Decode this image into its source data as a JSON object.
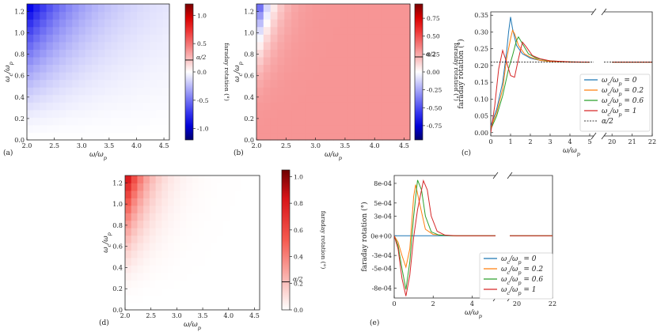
{
  "figure": {
    "panel_labels": [
      "(a)",
      "(b)",
      "(c)",
      "(d)",
      "(e)"
    ],
    "colorbar_label": "faraday rotation (°)",
    "alpha_label": "α/2"
  },
  "chart_data": [
    {
      "panel": "(a)",
      "type": "heatmap",
      "xlabel": "ω/ωp",
      "ylabel": "ωc/ωp",
      "xlim": [
        2.0,
        4.6
      ],
      "ylim": [
        0.0,
        1.27
      ],
      "xticks": [
        "2.0",
        "2.5",
        "3.0",
        "3.5",
        "4.0",
        "4.5"
      ],
      "yticks": [
        "0.0",
        "0.2",
        "0.4",
        "0.6",
        "0.8",
        "1.0",
        "1.2"
      ],
      "colormap": "blue-white-red (diverging)",
      "clim": [
        -1.2,
        1.2
      ],
      "colorbar_ticks": [
        "-1.0",
        "-0.5",
        "0.0",
        "0.5",
        "1.0"
      ],
      "colorbar_marker": 0.21,
      "colorbar_label": "faraday rotation (°)"
    },
    {
      "panel": "(b)",
      "type": "heatmap",
      "xlabel": "ω/ωp",
      "ylabel": "ωc/ωp",
      "xlim": [
        2.0,
        4.6
      ],
      "ylim": [
        0.0,
        1.27
      ],
      "xticks": [
        "2.0",
        "2.5",
        "3.0",
        "3.5",
        "4.0",
        "4.5"
      ],
      "yticks": [
        "0.0",
        "0.2",
        "0.4",
        "0.6",
        "0.8",
        "1.0",
        "1.2"
      ],
      "colormap": "blue-white-red (diverging)",
      "clim": [
        -0.95,
        0.95
      ],
      "colorbar_ticks": [
        "-0.75",
        "-0.50",
        "-0.25",
        "0.00",
        "0.25",
        "0.50",
        "0.75"
      ],
      "colorbar_marker": 0.21,
      "colorbar_label": "faraday rotation (°)"
    },
    {
      "panel": "(c)",
      "type": "line",
      "xlabel": "ω/ωp",
      "ylabel": "faraday rotation (°)",
      "x_segments": [
        [
          0,
          5.2
        ],
        [
          19.6,
          22
        ]
      ],
      "ylim": [
        -0.01,
        0.36
      ],
      "xticks_left": [
        "0",
        "1",
        "2",
        "3",
        "4",
        "5"
      ],
      "xticks_right": [
        "20",
        "21",
        "22"
      ],
      "yticks": [
        "0.00",
        "0.05",
        "0.10",
        "0.15",
        "0.20",
        "0.25",
        "0.30",
        "0.35"
      ],
      "legend_position": "lower-right",
      "series": [
        {
          "name": "ωc/ωp = 0",
          "color": "#1f77b4",
          "x": [
            0,
            0.3,
            0.6,
            0.8,
            0.9,
            1.0,
            1.1,
            1.3,
            1.6,
            2.0,
            2.5,
            3.0,
            4.0,
            5.0,
            20,
            22
          ],
          "y": [
            0.02,
            0.07,
            0.15,
            0.24,
            0.3,
            0.345,
            0.31,
            0.26,
            0.235,
            0.222,
            0.215,
            0.212,
            0.21,
            0.21,
            0.21,
            0.21
          ]
        },
        {
          "name": "ωc/ωp = 0.2",
          "color": "#ff7f0e",
          "x": [
            0,
            0.3,
            0.6,
            0.8,
            1.0,
            1.1,
            1.2,
            1.4,
            1.7,
            2.0,
            2.5,
            3.0,
            4.0,
            5.0,
            20,
            22
          ],
          "y": [
            0.015,
            0.06,
            0.13,
            0.22,
            0.28,
            0.305,
            0.295,
            0.26,
            0.235,
            0.225,
            0.215,
            0.212,
            0.21,
            0.21,
            0.21,
            0.21
          ]
        },
        {
          "name": "ωc/ωp = 0.6",
          "color": "#2ca02c",
          "x": [
            0,
            0.3,
            0.6,
            0.9,
            1.1,
            1.3,
            1.4,
            1.6,
            1.9,
            2.3,
            2.8,
            3.5,
            4.5,
            5.0,
            20,
            22
          ],
          "y": [
            0.01,
            0.05,
            0.11,
            0.19,
            0.23,
            0.275,
            0.285,
            0.265,
            0.235,
            0.222,
            0.215,
            0.212,
            0.21,
            0.21,
            0.21,
            0.21
          ]
        },
        {
          "name": "ωc/ωp = 1",
          "color": "#d62728",
          "x": [
            0,
            0.2,
            0.4,
            0.6,
            0.8,
            1.0,
            1.2,
            1.4,
            1.6,
            1.8,
            2.1,
            2.5,
            3.0,
            4.0,
            5.0,
            20,
            22
          ],
          "y": [
            0.0,
            0.08,
            0.19,
            0.245,
            0.21,
            0.17,
            0.165,
            0.22,
            0.27,
            0.255,
            0.23,
            0.22,
            0.214,
            0.211,
            0.21,
            0.21,
            0.21
          ]
        },
        {
          "name": "α/2",
          "color": "#000000",
          "dashed": true,
          "x": [
            0,
            5.2,
            19.6,
            22
          ],
          "y": [
            0.21,
            0.21,
            0.21,
            0.21
          ]
        }
      ]
    },
    {
      "panel": "(d)",
      "type": "heatmap",
      "xlabel": "ω/ωp",
      "ylabel": "ωc/ωp",
      "xlim": [
        2.0,
        4.6
      ],
      "ylim": [
        0.0,
        1.27
      ],
      "xticks": [
        "2.0",
        "2.5",
        "3.0",
        "3.5",
        "4.0",
        "4.5"
      ],
      "yticks": [
        "0.0",
        "0.2",
        "0.4",
        "0.6",
        "0.8",
        "1.0",
        "1.2"
      ],
      "colormap": "white-red (sequential)",
      "clim": [
        0.0,
        1.05
      ],
      "colorbar_ticks": [
        "0.0",
        "0.2",
        "0.4",
        "0.6",
        "0.8",
        "1.0"
      ],
      "colorbar_marker": 0.21,
      "colorbar_label": "faraday rotation (°)"
    },
    {
      "panel": "(e)",
      "type": "line",
      "xlabel": "ω/ωp",
      "ylabel": "faraday rotation (°)",
      "x_segments": [
        [
          0,
          5.2
        ],
        [
          19.6,
          22
        ]
      ],
      "ylim": [
        -0.00095,
        0.00092
      ],
      "xticks_left": [
        "0",
        "2",
        "4"
      ],
      "xticks_right": [
        "20",
        "22"
      ],
      "yticks": [
        "-8e-04",
        "-5e-04",
        "-3e-04",
        "0e+00",
        "3e-04",
        "5e-04",
        "8e-04"
      ],
      "legend_position": "lower-right",
      "series": [
        {
          "name": "ωc/ωp = 0",
          "color": "#1f77b4",
          "x": [
            0,
            5.2,
            19.6,
            22
          ],
          "y": [
            0,
            0,
            0,
            0
          ]
        },
        {
          "name": "ωc/ωp = 0.2",
          "color": "#ff7f0e",
          "x": [
            0,
            0.2,
            0.4,
            0.6,
            0.8,
            1.0,
            1.1,
            1.3,
            1.6,
            2.0,
            3.0,
            5.2,
            19.6,
            22
          ],
          "y": [
            0,
            -0.0001,
            -0.0003,
            -0.00048,
            -0.0002,
            0.0006,
            0.00078,
            0.0005,
            0.0001,
            2e-05,
            0,
            0,
            0,
            0
          ]
        },
        {
          "name": "ωc/ωp = 0.6",
          "color": "#2ca02c",
          "x": [
            0,
            0.2,
            0.4,
            0.6,
            0.8,
            1.0,
            1.2,
            1.4,
            1.6,
            1.9,
            2.3,
            3.0,
            5.2,
            19.6,
            22
          ],
          "y": [
            0,
            -0.00015,
            -0.0005,
            -0.00082,
            -0.0004,
            0.0003,
            0.00085,
            0.0007,
            0.0003,
            6e-05,
            1e-05,
            0,
            0,
            0,
            0
          ]
        },
        {
          "name": "ωc/ωp = 1",
          "color": "#d62728",
          "x": [
            0,
            0.2,
            0.4,
            0.6,
            0.8,
            1.0,
            1.2,
            1.5,
            1.7,
            1.9,
            2.2,
            2.6,
            3.2,
            5.2,
            19.6,
            22
          ],
          "y": [
            0,
            -0.0002,
            -0.00065,
            -0.00092,
            -0.0006,
            -2e-05,
            0.0004,
            0.00084,
            0.0007,
            0.0003,
            7e-05,
            1e-05,
            0,
            0,
            0,
            0
          ]
        }
      ]
    }
  ]
}
